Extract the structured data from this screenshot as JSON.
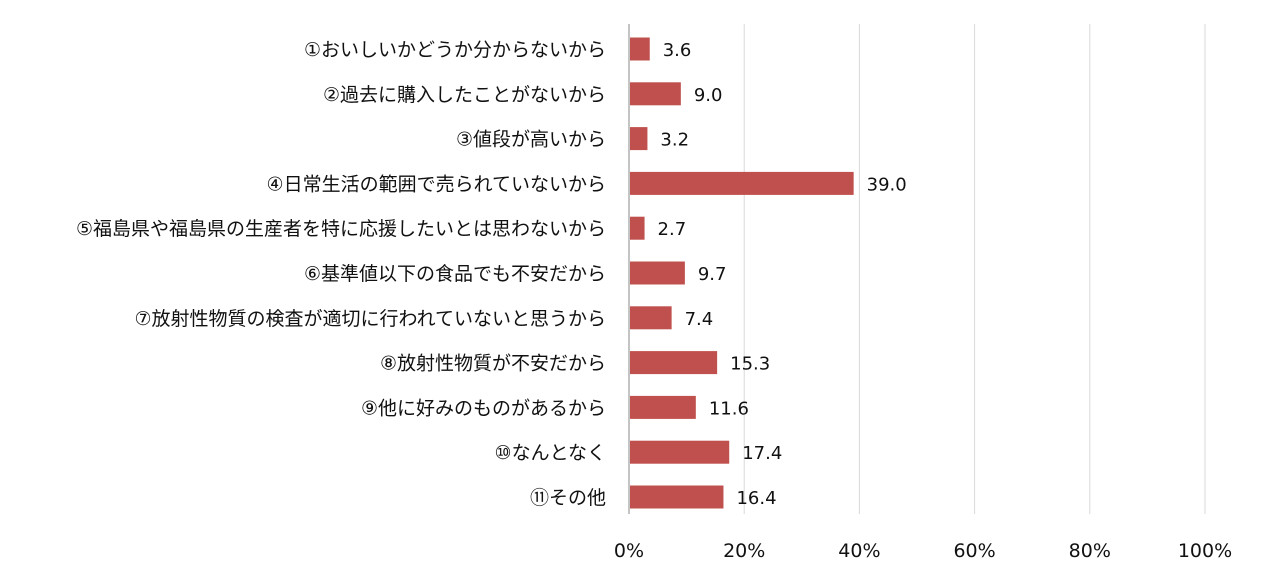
{
  "chart_data": {
    "type": "bar",
    "orientation": "horizontal",
    "categories": [
      "①おいしいかどうか分からないから",
      "②過去に購入したことがないから",
      "③値段が高いから",
      "④日常生活の範囲で売られていないから",
      "⑤福島県や福島県の生産者を特に応援したいとは思わないから",
      "⑥基準値以下の食品でも不安だから",
      "⑦放射性物質の検査が適切に行われていないと思うから",
      "⑧放射性物質が不安だから",
      "⑨他に好みのものがあるから",
      "⑩なんとなく",
      "⑪その他"
    ],
    "values": [
      3.6,
      9.0,
      3.2,
      39.0,
      2.7,
      9.7,
      7.4,
      15.3,
      11.6,
      17.4,
      16.4
    ],
    "value_labels": [
      "3.6",
      "9.0",
      "3.2",
      "39.0",
      "2.7",
      "9.7",
      "7.4",
      "15.3",
      "11.6",
      "17.4",
      "16.4"
    ],
    "xlim": [
      0,
      100
    ],
    "x_ticks": [
      0,
      20,
      40,
      60,
      80,
      100
    ],
    "x_tick_labels": [
      "0%",
      "20%",
      "40%",
      "60%",
      "80%",
      "100%"
    ],
    "grid": true,
    "bar_color": "#c0504d",
    "grid_color": "#d9d9d9",
    "title": "",
    "xlabel": "",
    "ylabel": ""
  }
}
